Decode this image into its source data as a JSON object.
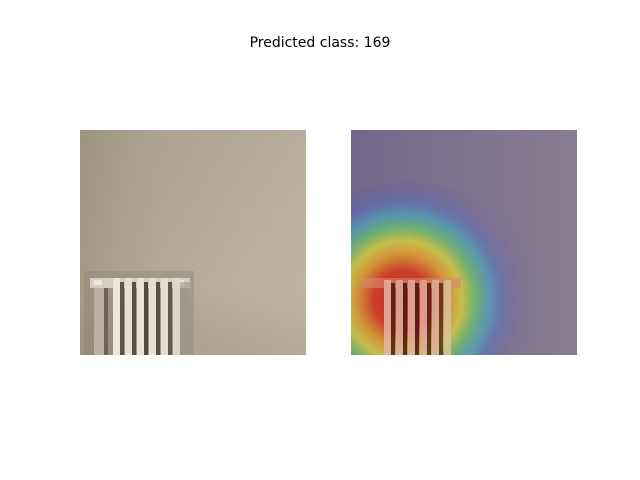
{
  "figure": {
    "title": "Predicted class: 169"
  },
  "panels": [
    {
      "kind": "input-image",
      "subject": "white radiator against a beige wall"
    },
    {
      "kind": "heatmap-overlay",
      "subject": "attention heatmap centered on the radiator",
      "colormap": "jet"
    }
  ],
  "colors": {
    "wall": "#b9ae9b",
    "wall_left": "#a89e89",
    "radiator": "#e2dcd2",
    "radiator_shadow": "#6f6456",
    "overlay_tint": "#6e6a8f"
  }
}
